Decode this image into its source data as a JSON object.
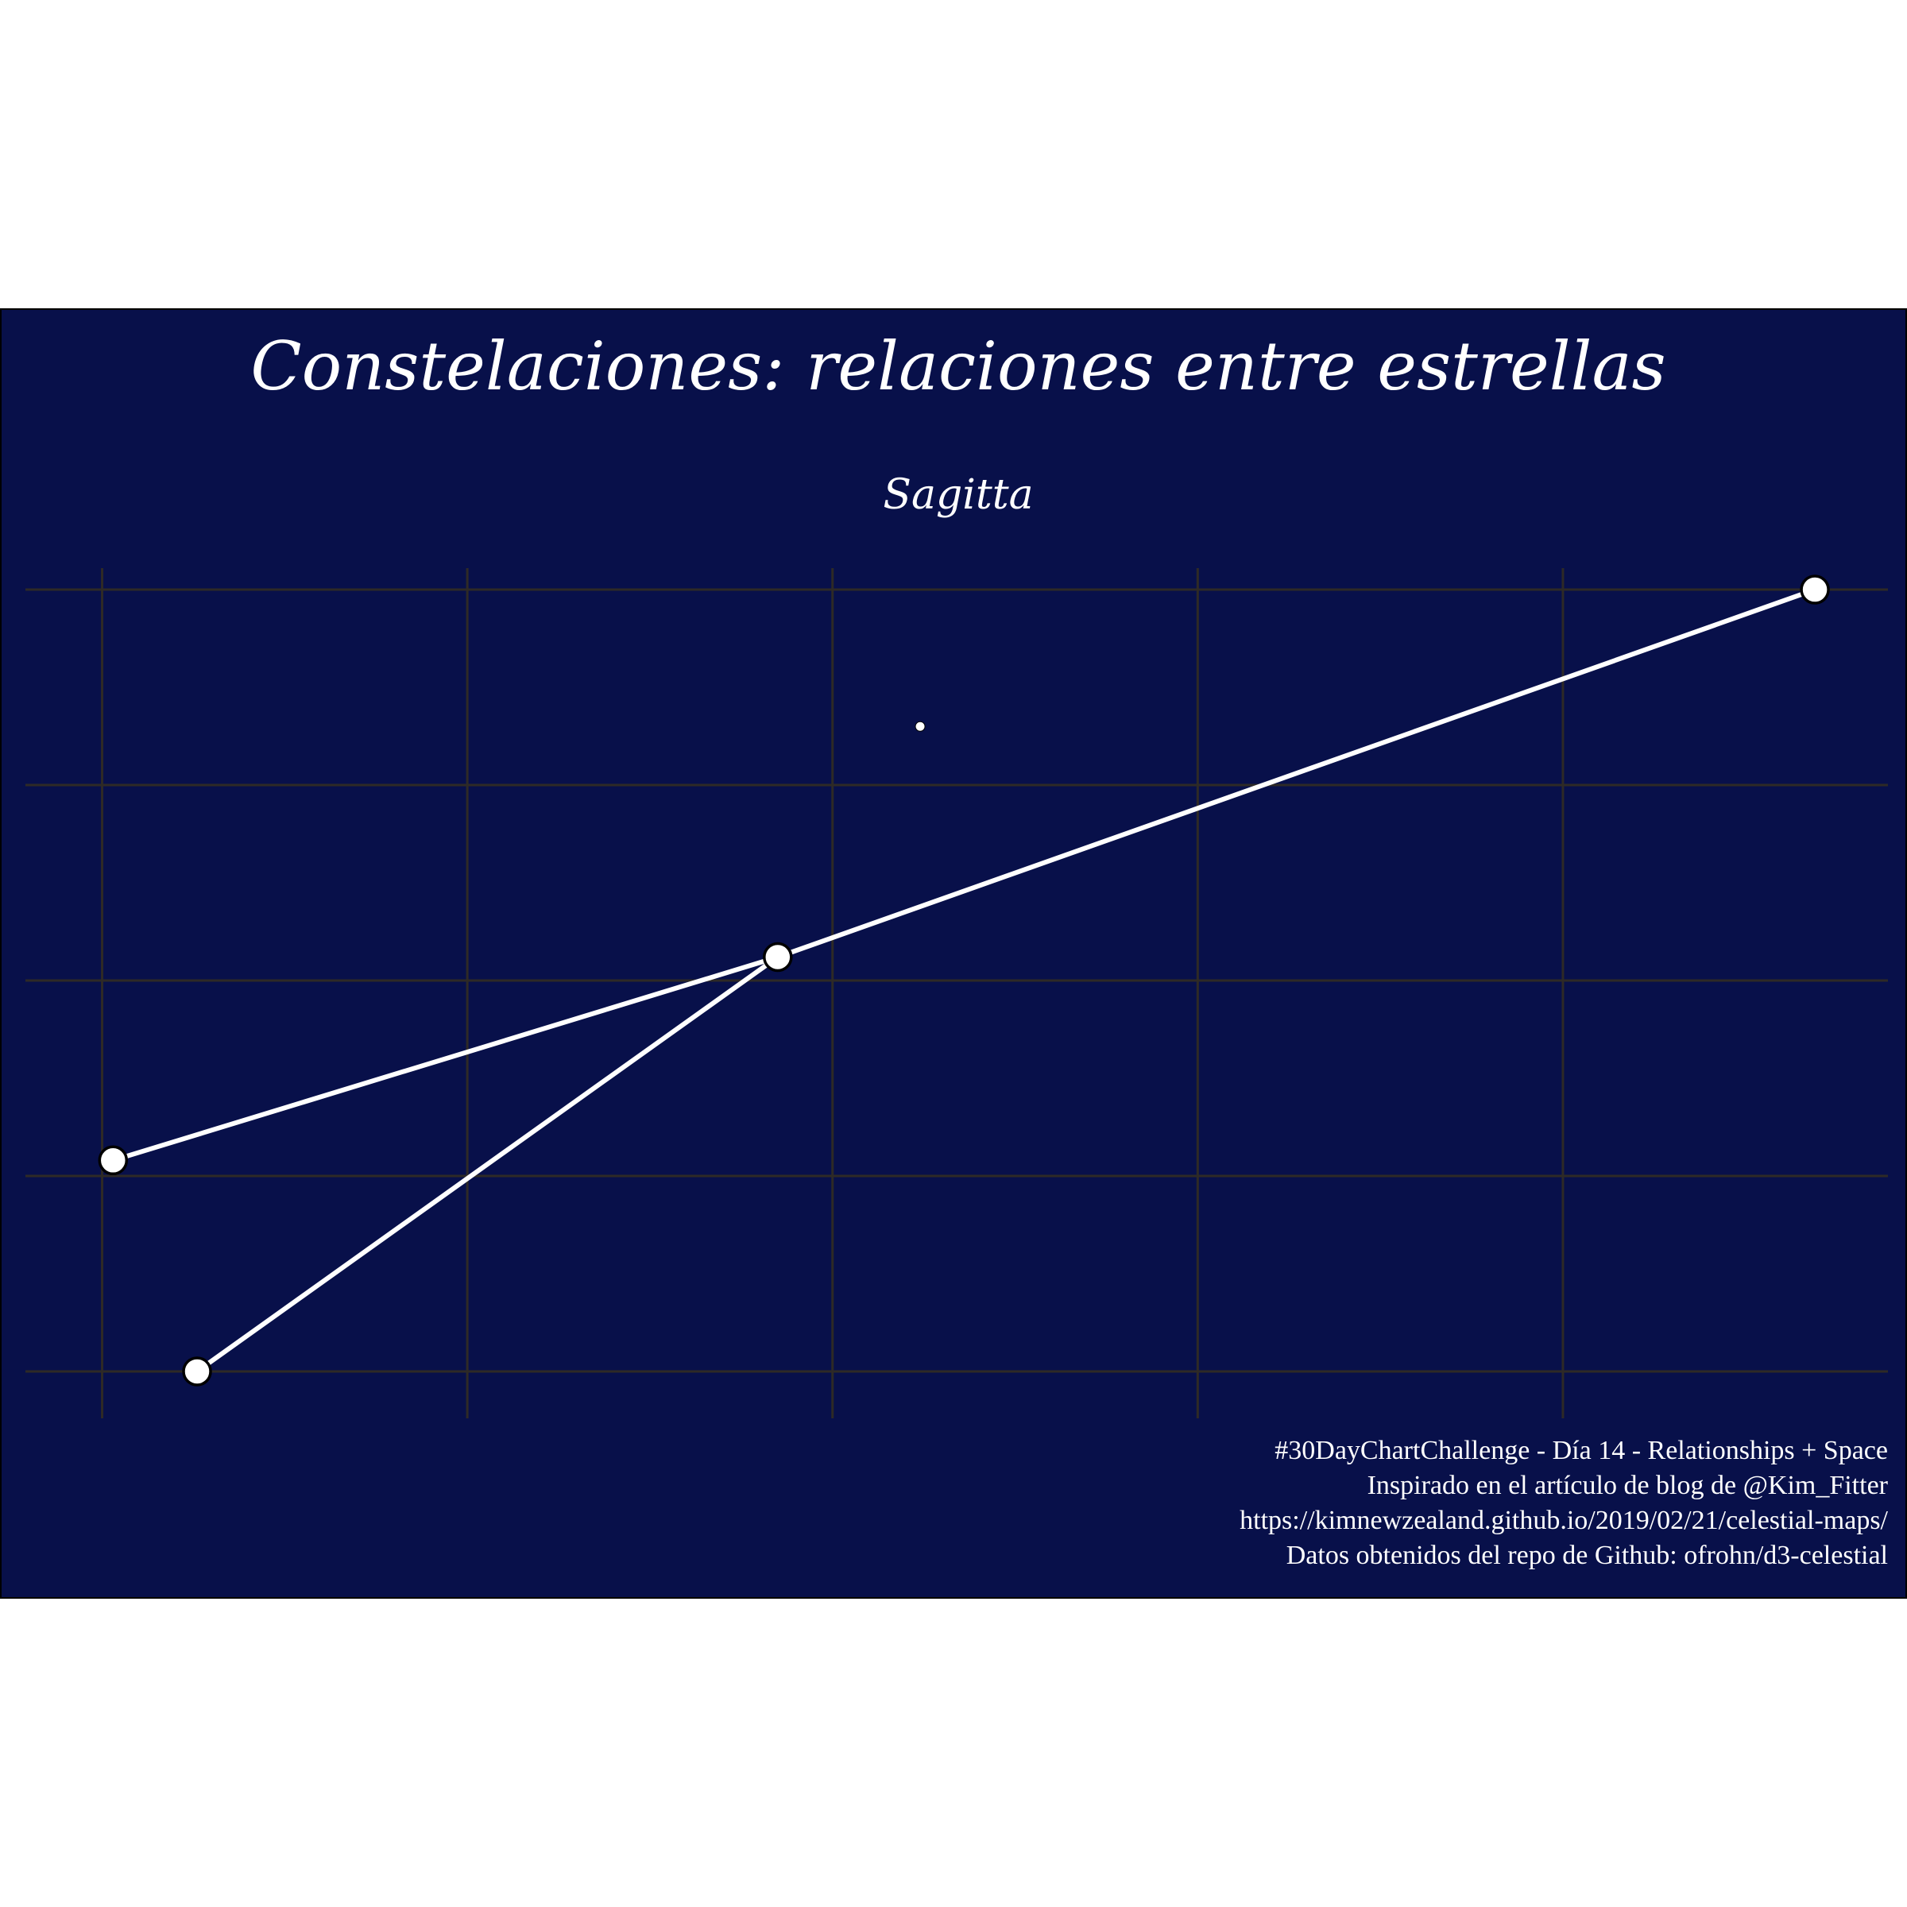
{
  "title": "Constelaciones: relaciones entre estrellas",
  "subtitle": "Sagitta",
  "caption": [
    "#30DayChartChallenge - Día 14 - Relationships + Space",
    "Inspirado en el artículo de blog de @Kim_Fitter",
    "https://kimnewzealand.github.io/2019/02/21/celestial-maps/",
    "Datos obtenidos del repo de Github: ofrohn/d3-celestial"
  ],
  "colors": {
    "background": "#08104a",
    "grid": "#2e2a26",
    "line": "#ffffff",
    "star_fill": "#ffffff",
    "star_stroke": "#000000",
    "text": "#ffffff"
  },
  "chart_data": {
    "type": "scatter",
    "title": "Constelaciones: relaciones entre estrellas",
    "subtitle": "Sagitta",
    "xlabel": "",
    "ylabel": "",
    "grid": true,
    "xlim": [
      -0.21,
      4.89
    ],
    "ylim": [
      -0.24,
      4.11
    ],
    "x_grid": [
      0,
      1,
      2,
      3,
      4
    ],
    "y_grid": [
      0,
      1,
      2,
      3,
      4
    ],
    "stars": [
      {
        "x": 0.26,
        "y": 0.0,
        "size": "large"
      },
      {
        "x": 0.03,
        "y": 1.08,
        "size": "large"
      },
      {
        "x": 1.85,
        "y": 2.12,
        "size": "large"
      },
      {
        "x": 4.69,
        "y": 4.0,
        "size": "large"
      },
      {
        "x": 2.24,
        "y": 3.3,
        "size": "small"
      }
    ],
    "lines": [
      [
        [
          0.03,
          1.08
        ],
        [
          1.85,
          2.12
        ],
        [
          4.69,
          4.0
        ]
      ],
      [
        [
          0.26,
          0.0
        ],
        [
          1.85,
          2.12
        ]
      ]
    ]
  }
}
